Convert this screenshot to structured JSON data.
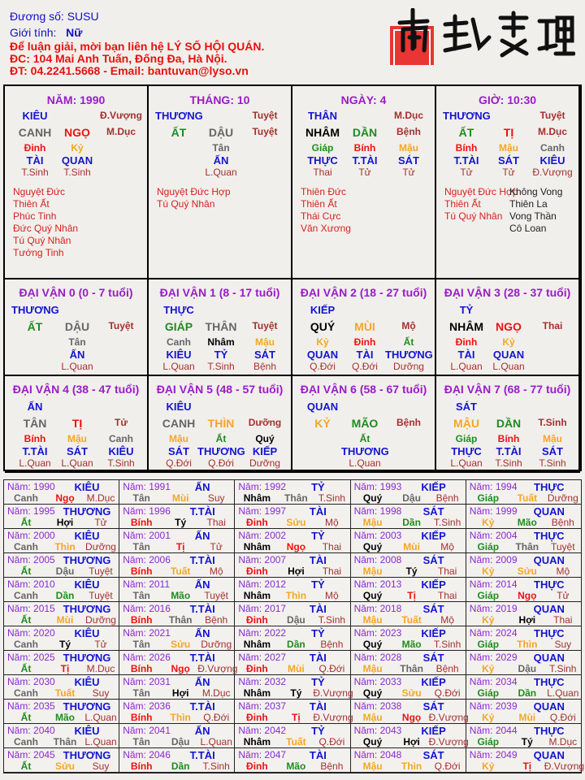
{
  "header": {
    "name_label": "Đương số:",
    "name": "SUSU",
    "gender_label": "Giới tính:",
    "gender": "Nữ",
    "line1": "Để luận giải, mời bạn liên hệ LÝ SỐ HỘI QUÁN.",
    "line2": "ĐC: 104 Mai Anh Tuấn, Đống Đa, Hà Nội.",
    "line3": "ĐT: 04.2241.5668 - Email: bantuvan@lyso.vn"
  },
  "logo": {
    "text": "南越數理"
  },
  "colors": {
    "metal": "#666666",
    "wood": "#1e8c1e",
    "fire": "#f01010",
    "earth": "#f5a623",
    "water": "#000000",
    "god": "#1414d0",
    "title": "#9a1cc8",
    "stage": "#a33030",
    "star": "#d82020"
  },
  "elements": {
    "canh": "metal",
    "tân": "metal",
    "giáp": "wood",
    "ất": "wood",
    "bính": "fire",
    "đinh": "fire",
    "mậu": "earth",
    "kỷ": "earth",
    "nhâm": "water",
    "quý": "water",
    "tý": "water",
    "hợi": "water",
    "dần": "wood",
    "mão": "wood",
    "tị": "fire",
    "ngọ": "fire",
    "thân": "metal",
    "dậu": "metal",
    "thìn": "earth",
    "tuất": "earth",
    "sửu": "earth",
    "mùi": "earth"
  },
  "pillars": [
    {
      "title": "NĂM: 1990",
      "god": "KIÊU",
      "god_stage": "Đ.Vượng",
      "stem": "CANH",
      "branch": "NGỌ",
      "stage": "M.Dục",
      "hidden": [
        {
          "stem": "Đinh",
          "god": "TÀI",
          "stage": "T.Sinh"
        },
        {
          "stem": "Kỷ",
          "god": "QUAN",
          "stage": "T.Sinh"
        }
      ],
      "stars": [
        "Nguyệt Đức",
        "Thiên Ất",
        "Phúc Tinh",
        "Đức Quý Nhân",
        "Tú Quý Nhân",
        "Tướng Tinh"
      ],
      "stars2": []
    },
    {
      "title": "THÁNG: 10",
      "god": "THƯƠNG",
      "god_stage": "Tuyệt",
      "stem": "ẤT",
      "branch": "DẬU",
      "stage": "Tuyệt",
      "hidden": [
        {
          "stem": "Tân",
          "god": "ẤN",
          "stage": "L.Quan"
        }
      ],
      "stars": [
        "Nguyệt Đức Hợp",
        "Tú Quý Nhân"
      ],
      "stars2": []
    },
    {
      "title": "NGÀY: 4",
      "god": "THÂN",
      "god_stage": "M.Dục",
      "stem": "NHÂM",
      "branch": "DẦN",
      "stage": "Bệnh",
      "hidden": [
        {
          "stem": "Giáp",
          "god": "THỰC",
          "stage": "Thai"
        },
        {
          "stem": "Bính",
          "god": "T.TÀI",
          "stage": "Tử"
        },
        {
          "stem": "Mậu",
          "god": "SÁT",
          "stage": "Tử"
        }
      ],
      "stars": [
        "Thiên Đức",
        "Thiên Ất",
        "Thái Cực",
        "Văn Xương"
      ],
      "stars2": []
    },
    {
      "title": "GIỜ: 10:30",
      "god": "THƯƠNG",
      "god_stage": "Tuyệt",
      "stem": "ẤT",
      "branch": "TỊ",
      "stage": "M.Dục",
      "hidden": [
        {
          "stem": "Bính",
          "god": "T.TÀI",
          "stage": "Tử"
        },
        {
          "stem": "Mậu",
          "god": "SÁT",
          "stage": "Tử"
        },
        {
          "stem": "Canh",
          "god": "KIÊU",
          "stage": "Đ.Vượng"
        }
      ],
      "stars": [
        "Nguyệt Đức Hợp",
        "Thiên Ất",
        "Tú Quý Nhân"
      ],
      "stars2": [
        "Không Vong",
        "Thiên La",
        "Vong Thần",
        "Cô Loan"
      ]
    }
  ],
  "luck_pillars": [
    {
      "title": "ĐẠI VẬN 0 (0 - 7 tuổi)",
      "god": "THƯƠNG",
      "stem": "ẤT",
      "branch": "DẬU",
      "stage": "Tuyệt",
      "hidden": [
        {
          "stem": "Tân",
          "god": "ẤN",
          "stage": "L.Quan"
        }
      ]
    },
    {
      "title": "ĐẠI VẬN 1 (8 - 17 tuổi)",
      "god": "THỰC",
      "stem": "GIÁP",
      "branch": "THÂN",
      "stage": "Tuyệt",
      "hidden": [
        {
          "stem": "Canh",
          "god": "KIÊU",
          "stage": "L.Quan"
        },
        {
          "stem": "Nhâm",
          "god": "TỶ",
          "stage": "T.Sinh"
        },
        {
          "stem": "Mậu",
          "god": "SÁT",
          "stage": "Bệnh"
        }
      ]
    },
    {
      "title": "ĐẠI VẬN 2 (18 - 27 tuổi)",
      "god": "KIẾP",
      "stem": "QUÝ",
      "branch": "MÙI",
      "stage": "Mộ",
      "hidden": [
        {
          "stem": "Kỷ",
          "god": "QUAN",
          "stage": "Q.Đới"
        },
        {
          "stem": "Đinh",
          "god": "TÀI",
          "stage": "Q.Đới"
        },
        {
          "stem": "Ất",
          "god": "THƯƠNG",
          "stage": "Dưỡng"
        }
      ]
    },
    {
      "title": "ĐẠI VẬN 3 (28 - 37 tuổi)",
      "god": "TỶ",
      "stem": "NHÂM",
      "branch": "NGỌ",
      "stage": "Thai",
      "hidden": [
        {
          "stem": "Đinh",
          "god": "TÀI",
          "stage": "L.Quan"
        },
        {
          "stem": "Kỷ",
          "god": "QUAN",
          "stage": "L.Quan"
        }
      ]
    },
    {
      "title": "ĐẠI VẬN 4 (38 - 47 tuổi)",
      "god": "ẤN",
      "stem": "TÂN",
      "branch": "TỊ",
      "stage": "Tử",
      "hidden": [
        {
          "stem": "Bính",
          "god": "T.TÀI",
          "stage": "L.Quan"
        },
        {
          "stem": "Mậu",
          "god": "SÁT",
          "stage": "L.Quan"
        },
        {
          "stem": "Canh",
          "god": "KIÊU",
          "stage": "T.Sinh"
        }
      ]
    },
    {
      "title": "ĐẠI VẬN 5 (48 - 57 tuổi)",
      "god": "KIÊU",
      "stem": "CANH",
      "branch": "THÌN",
      "stage": "Dưỡng",
      "hidden": [
        {
          "stem": "Mậu",
          "god": "SÁT",
          "stage": "Q.Đới"
        },
        {
          "stem": "Ất",
          "god": "THƯƠNG",
          "stage": "Q.Đới"
        },
        {
          "stem": "Quý",
          "god": "KIẾP",
          "stage": "Dưỡng"
        }
      ]
    },
    {
      "title": "ĐẠI VẬN 6 (58 - 67 tuổi)",
      "god": "QUAN",
      "stem": "KỶ",
      "branch": "MÃO",
      "stage": "Bệnh",
      "hidden": [
        {
          "stem": "Ất",
          "god": "THƯƠNG",
          "stage": "L.Quan"
        }
      ]
    },
    {
      "title": "ĐẠI VẬN 7 (68 - 77 tuổi)",
      "god": "SÁT",
      "stem": "MẬU",
      "branch": "DẦN",
      "stage": "T.Sinh",
      "hidden": [
        {
          "stem": "Giáp",
          "god": "THỰC",
          "stage": "L.Quan"
        },
        {
          "stem": "Bính",
          "god": "T.TÀI",
          "stage": "T.Sinh"
        },
        {
          "stem": "Mậu",
          "god": "SÁT",
          "stage": "T.Sinh"
        }
      ]
    }
  ],
  "year_prefix": "Năm:",
  "years": [
    [
      "1990",
      "KIÊU",
      "Canh",
      "Ngọ",
      "M.Dục"
    ],
    [
      "1991",
      "ẤN",
      "Tân",
      "Mùi",
      "Suy"
    ],
    [
      "1992",
      "TỶ",
      "Nhâm",
      "Thân",
      "T.Sinh"
    ],
    [
      "1993",
      "KIẾP",
      "Quý",
      "Dậu",
      "Bệnh"
    ],
    [
      "1994",
      "THỰC",
      "Giáp",
      "Tuất",
      "Dưỡng"
    ],
    [
      "1995",
      "THƯƠNG",
      "Ất",
      "Hợi",
      "Tử"
    ],
    [
      "1996",
      "T.TÀI",
      "Bính",
      "Tý",
      "Thai"
    ],
    [
      "1997",
      "TÀI",
      "Đinh",
      "Sửu",
      "Mộ"
    ],
    [
      "1998",
      "SÁT",
      "Mậu",
      "Dần",
      "T.Sinh"
    ],
    [
      "1999",
      "QUAN",
      "Kỷ",
      "Mão",
      "Bệnh"
    ],
    [
      "2000",
      "KIÊU",
      "Canh",
      "Thìn",
      "Dưỡng"
    ],
    [
      "2001",
      "ẤN",
      "Tân",
      "Tị",
      "Tử"
    ],
    [
      "2002",
      "TỶ",
      "Nhâm",
      "Ngọ",
      "Thai"
    ],
    [
      "2003",
      "KIẾP",
      "Quý",
      "Mùi",
      "Mộ"
    ],
    [
      "2004",
      "THỰC",
      "Giáp",
      "Thân",
      "Tuyệt"
    ],
    [
      "2005",
      "THƯƠNG",
      "Ất",
      "Dậu",
      "Tuyệt"
    ],
    [
      "2006",
      "T.TÀI",
      "Bính",
      "Tuất",
      "Mộ"
    ],
    [
      "2007",
      "TÀI",
      "Đinh",
      "Hợi",
      "Thai"
    ],
    [
      "2008",
      "SÁT",
      "Mậu",
      "Tý",
      "Thai"
    ],
    [
      "2009",
      "QUAN",
      "Kỷ",
      "Sửu",
      "Mộ"
    ],
    [
      "2010",
      "KIÊU",
      "Canh",
      "Dần",
      "Tuyệt"
    ],
    [
      "2011",
      "ẤN",
      "Tân",
      "Mão",
      "Tuyệt"
    ],
    [
      "2012",
      "TỶ",
      "Nhâm",
      "Thìn",
      "Mộ"
    ],
    [
      "2013",
      "KIẾP",
      "Quý",
      "Tị",
      "Thai"
    ],
    [
      "2014",
      "THỰC",
      "Giáp",
      "Ngọ",
      "Tử"
    ],
    [
      "2015",
      "THƯƠNG",
      "Ất",
      "Mùi",
      "Dưỡng"
    ],
    [
      "2016",
      "T.TÀI",
      "Bính",
      "Thân",
      "Bệnh"
    ],
    [
      "2017",
      "TÀI",
      "Đinh",
      "Dậu",
      "T.Sinh"
    ],
    [
      "2018",
      "SÁT",
      "Mậu",
      "Tuất",
      "Mộ"
    ],
    [
      "2019",
      "QUAN",
      "Kỷ",
      "Hợi",
      "Thai"
    ],
    [
      "2020",
      "KIÊU",
      "Canh",
      "Tý",
      "Tử"
    ],
    [
      "2021",
      "ẤN",
      "Tân",
      "Sửu",
      "Dưỡng"
    ],
    [
      "2022",
      "TỶ",
      "Nhâm",
      "Dần",
      "Bệnh"
    ],
    [
      "2023",
      "KIẾP",
      "Quý",
      "Mão",
      "T.Sinh"
    ],
    [
      "2024",
      "THỰC",
      "Giáp",
      "Thìn",
      "Suy"
    ],
    [
      "2025",
      "THƯƠNG",
      "Ất",
      "Tị",
      "M.Dục"
    ],
    [
      "2026",
      "T.TÀI",
      "Bính",
      "Ngọ",
      "Đ.Vượng"
    ],
    [
      "2027",
      "TÀI",
      "Đinh",
      "Mùi",
      "Q.Đới"
    ],
    [
      "2028",
      "SÁT",
      "Mậu",
      "Thân",
      "Bệnh"
    ],
    [
      "2029",
      "QUAN",
      "Kỷ",
      "Dậu",
      "T.Sinh"
    ],
    [
      "2030",
      "KIÊU",
      "Canh",
      "Tuất",
      "Suy"
    ],
    [
      "2031",
      "ẤN",
      "Tân",
      "Hợi",
      "M.Dục"
    ],
    [
      "2032",
      "TỶ",
      "Nhâm",
      "Tý",
      "Đ.Vượng"
    ],
    [
      "2033",
      "KIẾP",
      "Quý",
      "Sửu",
      "Q.Đới"
    ],
    [
      "2034",
      "THỰC",
      "Giáp",
      "Dần",
      "L.Quan"
    ],
    [
      "2035",
      "THƯƠNG",
      "Ất",
      "Mão",
      "L.Quan"
    ],
    [
      "2036",
      "T.TÀI",
      "Bính",
      "Thìn",
      "Q.Đới"
    ],
    [
      "2037",
      "TÀI",
      "Đinh",
      "Tị",
      "Đ.Vượng"
    ],
    [
      "2038",
      "SÁT",
      "Mậu",
      "Ngọ",
      "Đ.Vượng"
    ],
    [
      "2039",
      "QUAN",
      "Kỷ",
      "Mùi",
      "Q.Đới"
    ],
    [
      "2040",
      "KIÊU",
      "Canh",
      "Thân",
      "L.Quan"
    ],
    [
      "2041",
      "ẤN",
      "Tân",
      "Dậu",
      "L.Quan"
    ],
    [
      "2042",
      "TỶ",
      "Nhâm",
      "Tuất",
      "Q.Đới"
    ],
    [
      "2043",
      "KIẾP",
      "Quý",
      "Hợi",
      "Đ.Vượng"
    ],
    [
      "2044",
      "THỰC",
      "Giáp",
      "Tý",
      "M.Dục"
    ],
    [
      "2045",
      "THƯƠNG",
      "Ất",
      "Sửu",
      "Suy"
    ],
    [
      "2046",
      "T.TÀI",
      "Bính",
      "Dần",
      "T.Sinh"
    ],
    [
      "2047",
      "TÀI",
      "Đinh",
      "Mão",
      "Bệnh"
    ],
    [
      "2048",
      "SÁT",
      "Mậu",
      "Thìn",
      "Q.Đới"
    ],
    [
      "2049",
      "QUAN",
      "Kỷ",
      "Tị",
      "Đ.Vượng"
    ]
  ]
}
